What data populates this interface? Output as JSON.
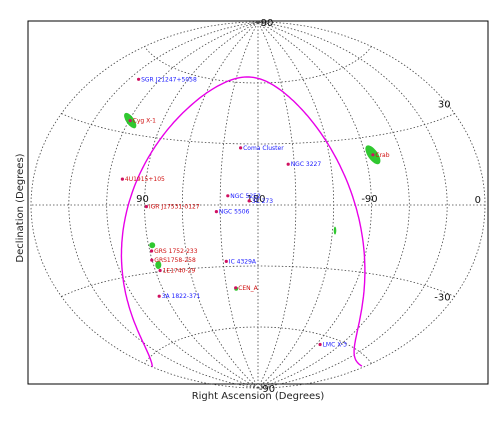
{
  "chart_data": {
    "type": "scatter",
    "title": "",
    "xlabel": "Right Ascension (Degrees)",
    "ylabel": "Declination (Degrees)",
    "projection": "Aitoff, centred on RA 180",
    "grid": true,
    "colors": {
      "frame": "#000000",
      "grid": "#444444",
      "galactic_plane": "#e800e8",
      "source_marker": "#d01060",
      "label_blue": "#1a1aff",
      "label_red": "#d01010",
      "exposure": "#19c219"
    },
    "ra_tick_labels": [
      {
        "text": "90",
        "ra": 270
      },
      {
        "text": "180",
        "ra": 180
      },
      {
        "text": "-90",
        "ra": 90
      }
    ],
    "dec_tick_labels": [
      {
        "text": "90",
        "dec": 90
      },
      {
        "text": "30",
        "dec": 30
      },
      {
        "text": "0",
        "dec": 0
      },
      {
        "text": "-30",
        "dec": -30
      },
      {
        "text": "-90",
        "dec": -90
      }
    ],
    "sources": [
      {
        "name": "SGR J21247+5058",
        "ra": 321,
        "dec": 50.9,
        "color": "#1a1aff",
        "side": "right"
      },
      {
        "name": "Cyg X-1",
        "ra": 299,
        "dec": 35.2,
        "color": "#d01010",
        "side": "right"
      },
      {
        "name": "Coma Cluster",
        "ra": 195,
        "dec": 28,
        "color": "#1a1aff",
        "side": "right"
      },
      {
        "name": "NGC 3227",
        "ra": 155,
        "dec": 19.9,
        "color": "#1a1aff",
        "side": "right"
      },
      {
        "name": "Crab",
        "ra": 83.6,
        "dec": 22,
        "color": "#d01010",
        "side": "right"
      },
      {
        "name": "4U1915+105",
        "ra": 289,
        "dec": 10.9,
        "color": "#d01010",
        "side": "right"
      },
      {
        "name": "3C 273",
        "ra": 187,
        "dec": 2,
        "color": "#1a1aff",
        "side": "right"
      },
      {
        "name": "NGC 5252",
        "ra": 204,
        "dec": 4.5,
        "color": "#1a1aff",
        "side": "right"
      },
      {
        "name": "NGC 5506",
        "ra": 213,
        "dec": -3.2,
        "color": "#1a1aff",
        "side": "right"
      },
      {
        "name": "IGR J17531-0127",
        "ra": 268.5,
        "dec": -0.7,
        "color": "#d01010",
        "side": "right"
      },
      {
        "name": "GRS 1752-233",
        "ra": 268.5,
        "dec": -20.5,
        "color": "#d01010",
        "side": "right"
      },
      {
        "name": "GRS1758-258",
        "ra": 270.3,
        "dec": -24.5,
        "color": "#d01010",
        "side": "right"
      },
      {
        "name": "1E1740-29",
        "ra": 265.9,
        "dec": -29.5,
        "color": "#d01010",
        "side": "right"
      },
      {
        "name": "IC 4329A",
        "ra": 207.3,
        "dec": -27.5,
        "color": "#1a1aff",
        "side": "right"
      },
      {
        "name": "3A 1822-371",
        "ra": 276.4,
        "dec": -40.5,
        "color": "#1a1aff",
        "side": "right"
      },
      {
        "name": "CEN_A",
        "ra": 201.4,
        "dec": -40.5,
        "color": "#d01010",
        "side": "right"
      },
      {
        "name": "LMC X-3",
        "ra": 84.7,
        "dec": -64.1,
        "color": "#1a1aff",
        "side": "right"
      }
    ]
  }
}
